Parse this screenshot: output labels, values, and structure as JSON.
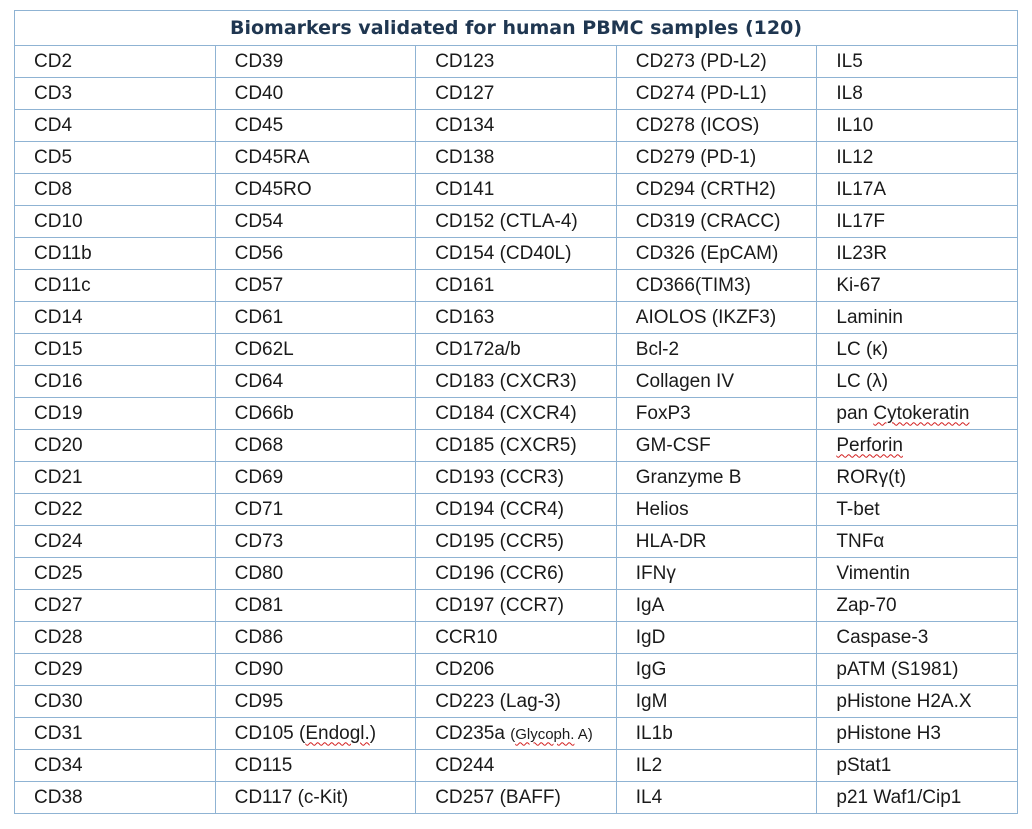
{
  "title": "Biomarkers validated for human PBMC samples (120)",
  "rows": [
    [
      "CD2",
      "CD39",
      "CD123",
      "CD273 (PD-L2)",
      "IL5"
    ],
    [
      "CD3",
      "CD40",
      "CD127",
      "CD274 (PD-L1)",
      "IL8"
    ],
    [
      "CD4",
      "CD45",
      "CD134",
      "CD278 (ICOS)",
      "IL10"
    ],
    [
      "CD5",
      "CD45RA",
      "CD138",
      "CD279 (PD-1)",
      "IL12"
    ],
    [
      "CD8",
      "CD45RO",
      "CD141",
      "CD294 (CRTH2)",
      "IL17A"
    ],
    [
      "CD10",
      "CD54",
      "CD152 (CTLA-4)",
      "CD319 (CRACC)",
      "IL17F"
    ],
    [
      "CD11b",
      "CD56",
      "CD154 (CD40L)",
      "CD326 (EpCAM)",
      "IL23R"
    ],
    [
      "CD11c",
      "CD57",
      "CD161",
      "CD366(TIM3)",
      "Ki-67"
    ],
    [
      "CD14",
      "CD61",
      "CD163",
      "AIOLOS (IKZF3)",
      "Laminin"
    ],
    [
      "CD15",
      "CD62L",
      "CD172a/b",
      "Bcl-2",
      "LC (κ)"
    ],
    [
      "CD16",
      "CD64",
      "CD183 (CXCR3)",
      "Collagen IV",
      "LC (λ)"
    ],
    [
      "CD19",
      "CD66b",
      "CD184 (CXCR4)",
      "FoxP3",
      "pan Cytokeratin"
    ],
    [
      "CD20",
      "CD68",
      "CD185 (CXCR5)",
      "GM-CSF",
      "Perforin"
    ],
    [
      "CD21",
      "CD69",
      "CD193 (CCR3)",
      "Granzyme B",
      "RORγ(t)"
    ],
    [
      "CD22",
      "CD71",
      "CD194 (CCR4)",
      "Helios",
      "T-bet"
    ],
    [
      "CD24",
      "CD73",
      "CD195 (CCR5)",
      "HLA-DR",
      "TNFα"
    ],
    [
      "CD25",
      "CD80",
      "CD196 (CCR6)",
      "IFNγ",
      "Vimentin"
    ],
    [
      "CD27",
      "CD81",
      "CD197 (CCR7)",
      "IgA",
      "Zap-70"
    ],
    [
      "CD28",
      "CD86",
      "CCR10",
      "IgD",
      "Caspase-3"
    ],
    [
      "CD29",
      "CD90",
      "CD206",
      "IgG",
      "pATM (S1981)"
    ],
    [
      "CD30",
      "CD95",
      "CD223 (Lag-3)",
      "IgM",
      "pHistone H2A.X"
    ],
    [
      "CD31",
      "CD105 (Endogl.)",
      "CD235a (Glycoph. A)",
      "IL1b",
      "pHistone H3"
    ],
    [
      "CD34",
      "CD115",
      "CD244",
      "IL2",
      "pStat1"
    ],
    [
      "CD38",
      "CD117 (c-Kit)",
      "CD257 (BAFF)",
      "IL4",
      "p21 Waf1/Cip1"
    ]
  ]
}
